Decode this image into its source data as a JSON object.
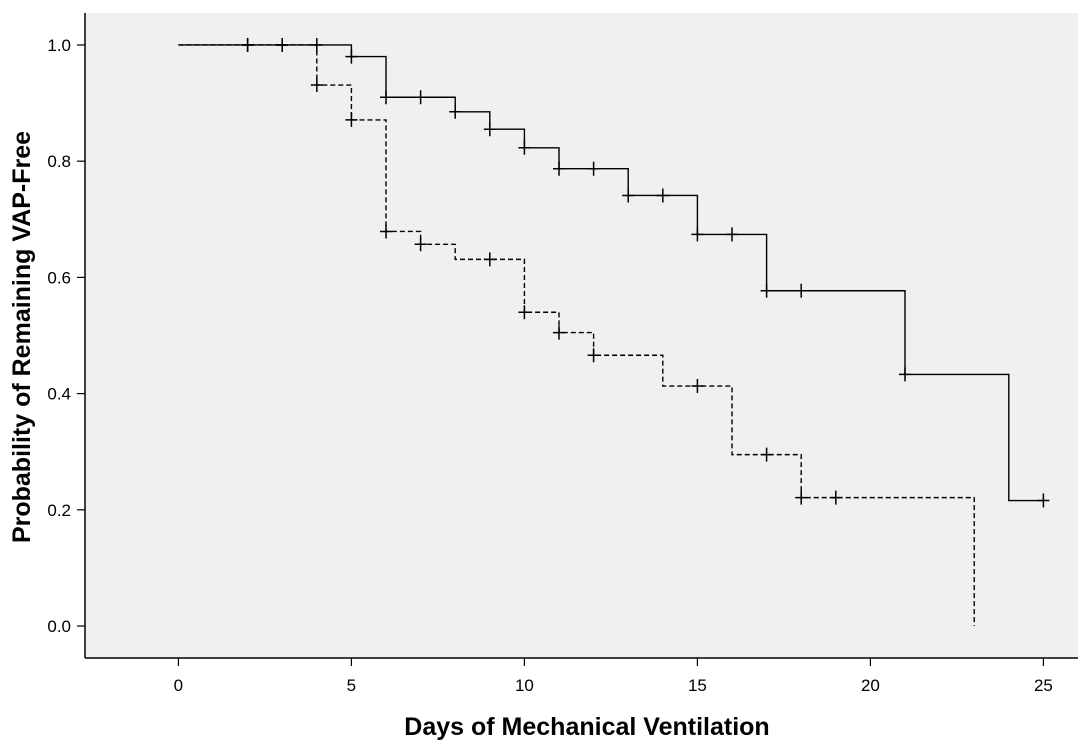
{
  "chart_data": {
    "type": "line",
    "title": "",
    "xlabel": "Days of Mechanical Ventilation",
    "ylabel": "Probability of Remaining VAP-Free",
    "xlim": [
      -2.7,
      26
    ],
    "ylim": [
      -0.055,
      1.055
    ],
    "xticks": [
      "0",
      "5",
      "10",
      "15",
      "20",
      "25"
    ],
    "yticks": [
      "0.0",
      "0.2",
      "0.4",
      "0.6",
      "0.8",
      "1.0"
    ],
    "grid": false,
    "legend": "none",
    "colors": {
      "background": "#f0f0f0",
      "line": "#000000"
    },
    "series": [
      {
        "line_style": "solid",
        "steps": [
          [
            0,
            1.0
          ],
          [
            5,
            0.98
          ],
          [
            6,
            0.91
          ],
          [
            8,
            0.885
          ],
          [
            9,
            0.855
          ],
          [
            10,
            0.823
          ],
          [
            11,
            0.787
          ],
          [
            13,
            0.741
          ],
          [
            15,
            0.674
          ],
          [
            17,
            0.577
          ],
          [
            21,
            0.433
          ],
          [
            24,
            0.216
          ],
          [
            25,
            0.216
          ]
        ],
        "censored": [
          [
            2,
            1.0
          ],
          [
            3,
            1.0
          ],
          [
            4,
            1.0
          ],
          [
            5,
            0.98
          ],
          [
            6,
            0.91
          ],
          [
            7,
            0.91
          ],
          [
            8,
            0.885
          ],
          [
            9,
            0.855
          ],
          [
            10,
            0.823
          ],
          [
            11,
            0.787
          ],
          [
            12,
            0.787
          ],
          [
            13,
            0.741
          ],
          [
            14,
            0.741
          ],
          [
            15,
            0.674
          ],
          [
            16,
            0.674
          ],
          [
            17,
            0.577
          ],
          [
            18,
            0.577
          ],
          [
            21,
            0.433
          ],
          [
            25,
            0.216
          ]
        ]
      },
      {
        "line_style": "dashed",
        "steps": [
          [
            0,
            1.0
          ],
          [
            4,
            0.931
          ],
          [
            5,
            0.871
          ],
          [
            6,
            0.679
          ],
          [
            7,
            0.657
          ],
          [
            8,
            0.631
          ],
          [
            10,
            0.54
          ],
          [
            11,
            0.505
          ],
          [
            12,
            0.466
          ],
          [
            14,
            0.413
          ],
          [
            16,
            0.295
          ],
          [
            18,
            0.221
          ],
          [
            23,
            0.0
          ]
        ],
        "censored": [
          [
            2,
            1.0
          ],
          [
            3,
            1.0
          ],
          [
            4,
            0.931
          ],
          [
            5,
            0.871
          ],
          [
            6,
            0.679
          ],
          [
            7,
            0.657
          ],
          [
            9,
            0.631
          ],
          [
            10,
            0.54
          ],
          [
            11,
            0.505
          ],
          [
            12,
            0.466
          ],
          [
            15,
            0.413
          ],
          [
            17,
            0.295
          ],
          [
            18,
            0.221
          ],
          [
            19,
            0.221
          ]
        ]
      }
    ]
  }
}
